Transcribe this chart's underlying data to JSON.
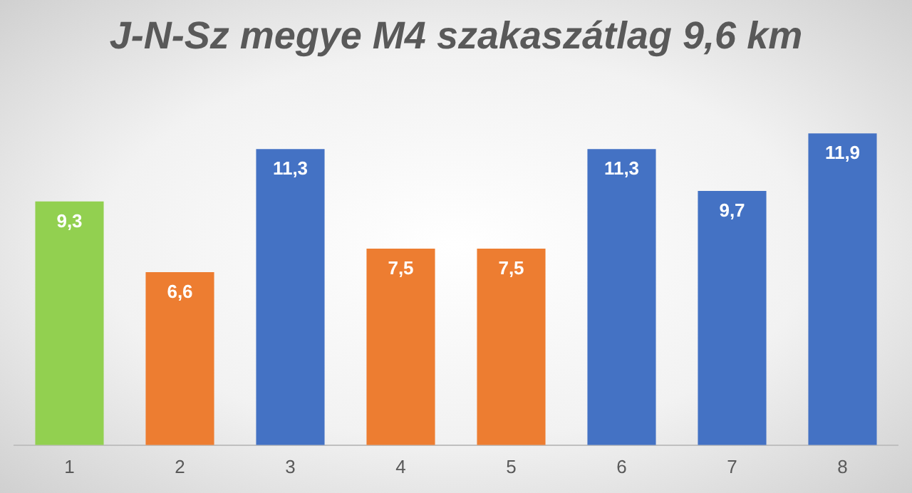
{
  "chart_data": {
    "type": "bar",
    "title": "J-N-Sz megye M4 szakaszátlag 9,6 km",
    "categories": [
      "1",
      "2",
      "3",
      "4",
      "5",
      "6",
      "7",
      "8"
    ],
    "values": [
      9.3,
      6.6,
      11.3,
      7.5,
      7.5,
      11.3,
      9.7,
      11.9
    ],
    "colors": [
      "#92d050",
      "#ed7d31",
      "#4472c4",
      "#ed7d31",
      "#ed7d31",
      "#4472c4",
      "#4472c4",
      "#4472c4"
    ],
    "value_labels": [
      "9,3",
      "6,6",
      "11,3",
      "7,5",
      "7,5",
      "11,3",
      "9,7",
      "11,9"
    ],
    "grid": false,
    "legend": false
  }
}
